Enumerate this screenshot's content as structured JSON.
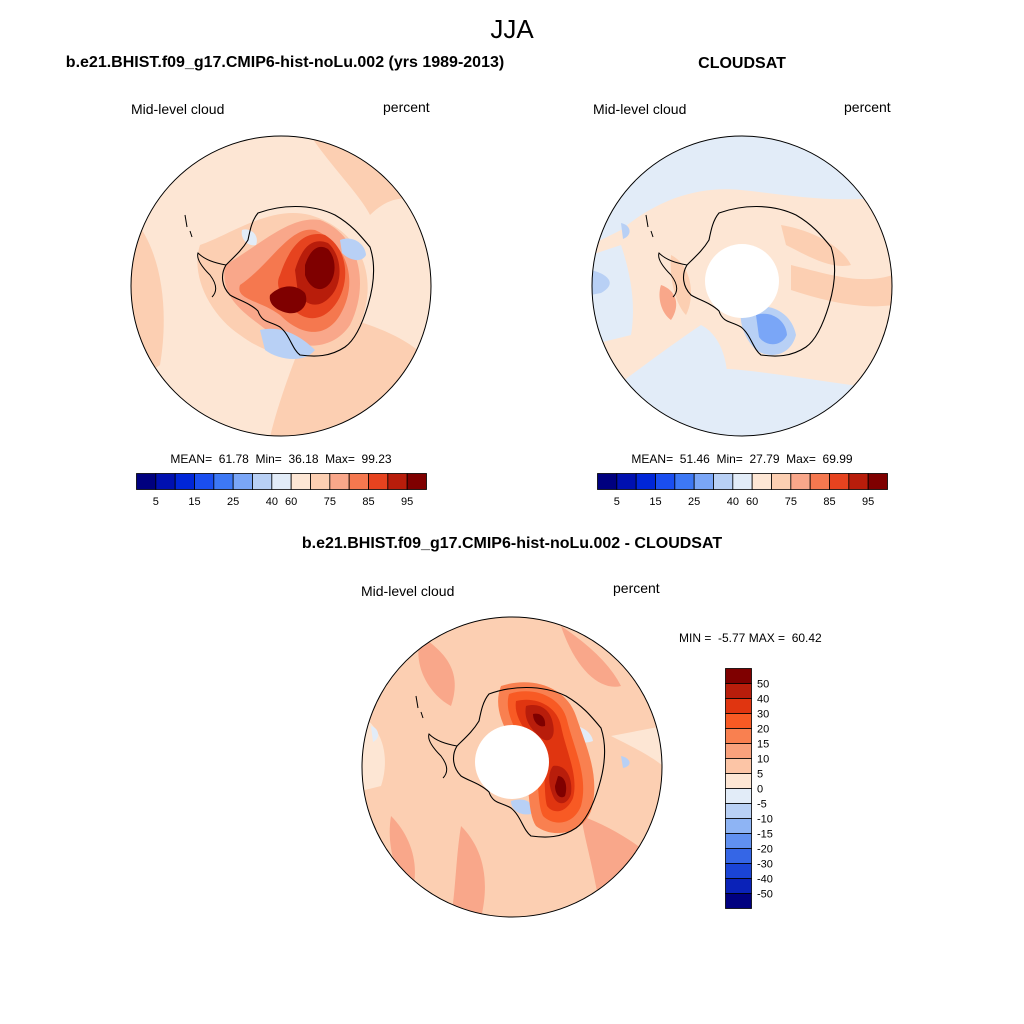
{
  "figure": {
    "title": "JJA",
    "season": "JJA"
  },
  "panels": [
    {
      "id": "model",
      "title": "b.e21.BHIST.f09_g17.CMIP6-hist-noLu.002 (yrs 1989-2013)",
      "variable": "Mid-level cloud",
      "units": "percent",
      "stats": {
        "mean": "61.78",
        "min": "36.18",
        "max": "99.23"
      },
      "stats_text": "MEAN=  61.78  Min=  36.18  Max=  99.23",
      "pole_hole": false
    },
    {
      "id": "obs",
      "title": "CLOUDSAT",
      "variable": "Mid-level cloud",
      "units": "percent",
      "stats": {
        "mean": "51.46",
        "min": "27.79",
        "max": "69.99"
      },
      "stats_text": "MEAN=  51.46  Min=  27.79  Max=  69.99",
      "pole_hole": true
    },
    {
      "id": "diff",
      "title": "b.e21.BHIST.f09_g17.CMIP6-hist-noLu.002 - CLOUDSAT",
      "variable": "Mid-level cloud",
      "units": "percent",
      "stats": {
        "min": "-5.77",
        "max": "60.42"
      },
      "stats_text": "MIN =  -5.77 MAX =  60.42",
      "pole_hole": true
    }
  ],
  "abs_colorbar": {
    "colors": [
      "#00007f",
      "#0010b0",
      "#0026d8",
      "#1a4ef0",
      "#3d78f5",
      "#7aa6f7",
      "#b8d0f5",
      "#e2ecf8",
      "#fde6d4",
      "#fccfb2",
      "#f9a78a",
      "#f5784f",
      "#e6431f",
      "#b81d0b",
      "#7f0000"
    ],
    "tick_labels": [
      "5",
      "15",
      "25",
      "40",
      "60",
      "75",
      "85",
      "95"
    ]
  },
  "diff_colorbar": {
    "colors": [
      "#7f0000",
      "#b81d0b",
      "#e03510",
      "#f85a24",
      "#f98050",
      "#f9a17c",
      "#fcc5a6",
      "#fde6d4",
      "#e2ecf8",
      "#b8d0f5",
      "#8eb4f4",
      "#6090f0",
      "#3566e6",
      "#1a44d6",
      "#0a22b8",
      "#000080"
    ],
    "tick_labels": [
      "50",
      "40",
      "30",
      "20",
      "15",
      "10",
      "5",
      "0",
      "-5",
      "-10",
      "-15",
      "-20",
      "-30",
      "-40",
      "-50"
    ]
  },
  "palette": {
    "light_peach": "#fde6d4",
    "peach": "#fccfb2",
    "salmon": "#f9a78a",
    "orange_red": "#f5784f",
    "red": "#e6431f",
    "dark_red": "#b81d0b",
    "maroon": "#7f0000",
    "light_blue": "#e2ecf8",
    "pale_blue": "#b8d0f5",
    "mid_blue": "#7aa6f7"
  }
}
